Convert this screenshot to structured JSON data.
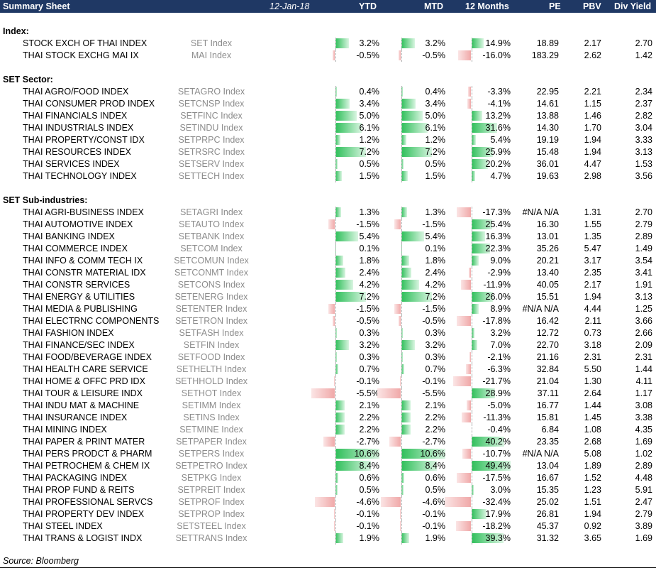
{
  "header": {
    "title": "Summary Sheet",
    "date": "12-Jan-18",
    "columns": [
      "YTD",
      "MTD",
      "12 Months",
      "PE",
      "PBV",
      "Div Yield"
    ]
  },
  "sections": [
    {
      "title": "Index:",
      "rows": [
        {
          "name": "STOCK EXCH OF THAI INDEX",
          "ticker": "SET Index",
          "ytd": 3.2,
          "mtd": 3.2,
          "m12": 14.9,
          "ytd_t": "3.2%",
          "mtd_t": "3.2%",
          "m12_t": "14.9%",
          "pe": "18.89",
          "pbv": "2.17",
          "dy": "2.70"
        },
        {
          "name": "THAI STOCK EXCHG MAI IX",
          "ticker": "MAI Index",
          "ytd": -0.5,
          "mtd": -0.5,
          "m12": -16.0,
          "ytd_t": "-0.5%",
          "mtd_t": "-0.5%",
          "m12_t": "-16.0%",
          "pe": "183.29",
          "pbv": "2.62",
          "dy": "1.42"
        }
      ]
    },
    {
      "title": "SET Sector:",
      "rows": [
        {
          "name": "THAI AGRO/FOOD INDEX",
          "ticker": "SETAGRO Index",
          "ytd": 0.4,
          "mtd": 0.4,
          "m12": -3.3,
          "ytd_t": "0.4%",
          "mtd_t": "0.4%",
          "m12_t": "-3.3%",
          "pe": "22.95",
          "pbv": "2.21",
          "dy": "2.34"
        },
        {
          "name": "THAI CONSUMER PROD INDEX",
          "ticker": "SETCNSP Index",
          "ytd": 3.4,
          "mtd": 3.4,
          "m12": -4.1,
          "ytd_t": "3.4%",
          "mtd_t": "3.4%",
          "m12_t": "-4.1%",
          "pe": "14.61",
          "pbv": "1.15",
          "dy": "2.37"
        },
        {
          "name": "THAI FINANCIALS INDEX",
          "ticker": "SETFINC Index",
          "ytd": 5.0,
          "mtd": 5.0,
          "m12": 13.2,
          "ytd_t": "5.0%",
          "mtd_t": "5.0%",
          "m12_t": "13.2%",
          "pe": "13.88",
          "pbv": "1.46",
          "dy": "2.82"
        },
        {
          "name": "THAI INDUSTRIALS INDEX",
          "ticker": "SETINDU Index",
          "ytd": 6.1,
          "mtd": 6.1,
          "m12": 31.6,
          "ytd_t": "6.1%",
          "mtd_t": "6.1%",
          "m12_t": "31.6%",
          "pe": "14.30",
          "pbv": "1.70",
          "dy": "3.04"
        },
        {
          "name": "THAI PROPERTY/CONST IDX",
          "ticker": "SETPRPC Index",
          "ytd": 1.2,
          "mtd": 1.2,
          "m12": 5.4,
          "ytd_t": "1.2%",
          "mtd_t": "1.2%",
          "m12_t": "5.4%",
          "pe": "19.19",
          "pbv": "1.94",
          "dy": "3.33"
        },
        {
          "name": "THAI RESOURCES INDEX",
          "ticker": "SETRSRC Index",
          "ytd": 7.2,
          "mtd": 7.2,
          "m12": 25.9,
          "ytd_t": "7.2%",
          "mtd_t": "7.2%",
          "m12_t": "25.9%",
          "pe": "15.48",
          "pbv": "1.94",
          "dy": "3.13"
        },
        {
          "name": "THAI SERVICES INDEX",
          "ticker": "SETSERV Index",
          "ytd": 0.5,
          "mtd": 0.5,
          "m12": 20.2,
          "ytd_t": "0.5%",
          "mtd_t": "0.5%",
          "m12_t": "20.2%",
          "pe": "36.01",
          "pbv": "4.47",
          "dy": "1.53"
        },
        {
          "name": "THAI TECHNOLOGY INDEX",
          "ticker": "SETTECH Index",
          "ytd": 1.5,
          "mtd": 1.5,
          "m12": 4.7,
          "ytd_t": "1.5%",
          "mtd_t": "1.5%",
          "m12_t": "4.7%",
          "pe": "19.63",
          "pbv": "2.98",
          "dy": "3.56"
        }
      ]
    },
    {
      "title": "SET Sub-industries:",
      "rows": [
        {
          "name": "THAI AGRI-BUSINESS INDEX",
          "ticker": "SETAGRI Index",
          "ytd": 1.3,
          "mtd": 1.3,
          "m12": -17.3,
          "ytd_t": "1.3%",
          "mtd_t": "1.3%",
          "m12_t": "-17.3%",
          "pe": "#N/A N/A",
          "pbv": "1.31",
          "dy": "2.70"
        },
        {
          "name": "THAI AUTOMOTIVE INDEX",
          "ticker": "SETAUTO Index",
          "ytd": -1.5,
          "mtd": -1.5,
          "m12": 25.4,
          "ytd_t": "-1.5%",
          "mtd_t": "-1.5%",
          "m12_t": "25.4%",
          "pe": "16.30",
          "pbv": "1.55",
          "dy": "2.79"
        },
        {
          "name": "THAI BANKING INDEX",
          "ticker": "SETBANK Index",
          "ytd": 5.4,
          "mtd": 5.4,
          "m12": 16.3,
          "ytd_t": "5.4%",
          "mtd_t": "5.4%",
          "m12_t": "16.3%",
          "pe": "13.01",
          "pbv": "1.35",
          "dy": "2.89"
        },
        {
          "name": "THAI COMMERCE INDEX",
          "ticker": "SETCOM Index",
          "ytd": 0.1,
          "mtd": 0.1,
          "m12": 22.3,
          "ytd_t": "0.1%",
          "mtd_t": "0.1%",
          "m12_t": "22.3%",
          "pe": "35.26",
          "pbv": "5.47",
          "dy": "1.49"
        },
        {
          "name": "THAI INFO & COMM TECH IX",
          "ticker": "SETCOMUN Index",
          "ytd": 1.8,
          "mtd": 1.8,
          "m12": 9.0,
          "ytd_t": "1.8%",
          "mtd_t": "1.8%",
          "m12_t": "9.0%",
          "pe": "20.21",
          "pbv": "3.17",
          "dy": "3.54"
        },
        {
          "name": "THAI CONSTR MATERIAL IDX",
          "ticker": "SETCONMT Index",
          "ytd": 2.4,
          "mtd": 2.4,
          "m12": -2.9,
          "ytd_t": "2.4%",
          "mtd_t": "2.4%",
          "m12_t": "-2.9%",
          "pe": "13.40",
          "pbv": "2.35",
          "dy": "3.41"
        },
        {
          "name": "THAI CONSTR SERVICES",
          "ticker": "SETCONS Index",
          "ytd": 4.2,
          "mtd": 4.2,
          "m12": -11.9,
          "ytd_t": "4.2%",
          "mtd_t": "4.2%",
          "m12_t": "-11.9%",
          "pe": "40.05",
          "pbv": "2.17",
          "dy": "1.91"
        },
        {
          "name": "THAI ENERGY & UTILITIES",
          "ticker": "SETENERG Index",
          "ytd": 7.2,
          "mtd": 7.2,
          "m12": 26.0,
          "ytd_t": "7.2%",
          "mtd_t": "7.2%",
          "m12_t": "26.0%",
          "pe": "15.51",
          "pbv": "1.94",
          "dy": "3.13"
        },
        {
          "name": "THAI MEDIA & PUBLISHING",
          "ticker": "SETENTER Index",
          "ytd": -1.5,
          "mtd": -1.5,
          "m12": 8.9,
          "ytd_t": "-1.5%",
          "mtd_t": "-1.5%",
          "m12_t": "8.9%",
          "pe": "#N/A N/A",
          "pbv": "4.44",
          "dy": "1.25"
        },
        {
          "name": "THAI ELECTRNC COMPONENTS",
          "ticker": "SETETRON Index",
          "ytd": -0.5,
          "mtd": -0.5,
          "m12": -17.8,
          "ytd_t": "-0.5%",
          "mtd_t": "-0.5%",
          "m12_t": "-17.8%",
          "pe": "16.42",
          "pbv": "2.11",
          "dy": "3.66"
        },
        {
          "name": "THAI FASHION INDEX",
          "ticker": "SETFASH Index",
          "ytd": 0.3,
          "mtd": 0.3,
          "m12": 3.2,
          "ytd_t": "0.3%",
          "mtd_t": "0.3%",
          "m12_t": "3.2%",
          "pe": "12.72",
          "pbv": "0.73",
          "dy": "2.66"
        },
        {
          "name": "THAI FINANCE/SEC INDEX",
          "ticker": "SETFIN Index",
          "ytd": 3.2,
          "mtd": 3.2,
          "m12": 7.0,
          "ytd_t": "3.2%",
          "mtd_t": "3.2%",
          "m12_t": "7.0%",
          "pe": "22.70",
          "pbv": "3.18",
          "dy": "2.09"
        },
        {
          "name": "THAI FOOD/BEVERAGE INDEX",
          "ticker": "SETFOOD Index",
          "ytd": 0.3,
          "mtd": 0.3,
          "m12": -2.1,
          "ytd_t": "0.3%",
          "mtd_t": "0.3%",
          "m12_t": "-2.1%",
          "pe": "21.16",
          "pbv": "2.31",
          "dy": "2.31"
        },
        {
          "name": "THAI HEALTH CARE SERVICE",
          "ticker": "SETHELTH Index",
          "ytd": 0.7,
          "mtd": 0.7,
          "m12": -6.3,
          "ytd_t": "0.7%",
          "mtd_t": "0.7%",
          "m12_t": "-6.3%",
          "pe": "32.84",
          "pbv": "5.50",
          "dy": "1.44"
        },
        {
          "name": "THAI HOME & OFFC PRD IDX",
          "ticker": "SETHHOLD Index",
          "ytd": -0.1,
          "mtd": -0.1,
          "m12": -21.7,
          "ytd_t": "-0.1%",
          "mtd_t": "-0.1%",
          "m12_t": "-21.7%",
          "pe": "21.04",
          "pbv": "1.30",
          "dy": "4.11"
        },
        {
          "name": "THAI TOUR & LEISURE INDX",
          "ticker": "SETHOT Index",
          "ytd": -5.5,
          "mtd": -5.5,
          "m12": 28.9,
          "ytd_t": "-5.5%",
          "mtd_t": "-5.5%",
          "m12_t": "28.9%",
          "pe": "37.11",
          "pbv": "2.64",
          "dy": "1.17"
        },
        {
          "name": "THAI INDU MAT & MACHINE",
          "ticker": "SETIMM Index",
          "ytd": 2.1,
          "mtd": 2.1,
          "m12": -5.0,
          "ytd_t": "2.1%",
          "mtd_t": "2.1%",
          "m12_t": "-5.0%",
          "pe": "16.77",
          "pbv": "1.44",
          "dy": "3.08"
        },
        {
          "name": "THAI INSURANCE INDEX",
          "ticker": "SETINS Index",
          "ytd": 2.2,
          "mtd": 2.2,
          "m12": -11.3,
          "ytd_t": "2.2%",
          "mtd_t": "2.2%",
          "m12_t": "-11.3%",
          "pe": "15.81",
          "pbv": "1.45",
          "dy": "3.38"
        },
        {
          "name": "THAI MINING INDEX",
          "ticker": "SETMINE Index",
          "ytd": 2.2,
          "mtd": 2.2,
          "m12": -0.4,
          "ytd_t": "2.2%",
          "mtd_t": "2.2%",
          "m12_t": "-0.4%",
          "pe": "6.84",
          "pbv": "1.08",
          "dy": "4.35"
        },
        {
          "name": "THAI PAPER & PRINT MATER",
          "ticker": "SETPAPER Index",
          "ytd": -2.7,
          "mtd": -2.7,
          "m12": 40.2,
          "ytd_t": "-2.7%",
          "mtd_t": "-2.7%",
          "m12_t": "40.2%",
          "pe": "23.35",
          "pbv": "2.68",
          "dy": "1.69"
        },
        {
          "name": "THAI PERS PRODCT & PHARM",
          "ticker": "SETPERS Index",
          "ytd": 10.6,
          "mtd": 10.6,
          "m12": -10.7,
          "ytd_t": "10.6%",
          "mtd_t": "10.6%",
          "m12_t": "-10.7%",
          "pe": "#N/A N/A",
          "pbv": "5.08",
          "dy": "1.02"
        },
        {
          "name": "THAI PETROCHEM & CHEM IX",
          "ticker": "SETPETRO Index",
          "ytd": 8.4,
          "mtd": 8.4,
          "m12": 49.4,
          "ytd_t": "8.4%",
          "mtd_t": "8.4%",
          "m12_t": "49.4%",
          "pe": "13.04",
          "pbv": "1.89",
          "dy": "2.89"
        },
        {
          "name": "THAI PACKAGING INDEX",
          "ticker": "SETPKG Index",
          "ytd": 0.6,
          "mtd": 0.6,
          "m12": -17.5,
          "ytd_t": "0.6%",
          "mtd_t": "0.6%",
          "m12_t": "-17.5%",
          "pe": "16.67",
          "pbv": "1.52",
          "dy": "4.48"
        },
        {
          "name": "THAI PROP FUND & REITS",
          "ticker": "SETPREIT Index",
          "ytd": 0.5,
          "mtd": 0.5,
          "m12": 3.0,
          "ytd_t": "0.5%",
          "mtd_t": "0.5%",
          "m12_t": "3.0%",
          "pe": "15.35",
          "pbv": "1.23",
          "dy": "5.91"
        },
        {
          "name": "THAI PROFESSIONAL SERVCS",
          "ticker": "SETPROF Index",
          "ytd": -4.6,
          "mtd": -4.6,
          "m12": -32.4,
          "ytd_t": "-4.6%",
          "mtd_t": "-4.6%",
          "m12_t": "-32.4%",
          "pe": "25.02",
          "pbv": "1.51",
          "dy": "2.47"
        },
        {
          "name": "THAI PROPERTY DEV INDEX",
          "ticker": "SETPROP Index",
          "ytd": -0.1,
          "mtd": -0.1,
          "m12": 17.9,
          "ytd_t": "-0.1%",
          "mtd_t": "-0.1%",
          "m12_t": "17.9%",
          "pe": "26.81",
          "pbv": "1.94",
          "dy": "2.79"
        },
        {
          "name": "THAI STEEL INDEX",
          "ticker": "SETSTEEL Index",
          "ytd": -0.1,
          "mtd": -0.1,
          "m12": -18.2,
          "ytd_t": "-0.1%",
          "mtd_t": "-0.1%",
          "m12_t": "-18.2%",
          "pe": "45.37",
          "pbv": "0.92",
          "dy": "3.89"
        },
        {
          "name": "THAI TRANS & LOGIST INDX",
          "ticker": "SETTRANS Index",
          "ytd": 1.9,
          "mtd": 1.9,
          "m12": 39.3,
          "ytd_t": "1.9%",
          "mtd_t": "1.9%",
          "m12_t": "39.3%",
          "pe": "31.32",
          "pbv": "3.65",
          "dy": "1.69"
        }
      ]
    }
  ],
  "source": "Source: Bloomberg",
  "colors": {
    "header_bg": "#1f3864",
    "positive_bar": "#2fbf5a",
    "negative_bar": "#f0a8a8",
    "ticker_text": "#8c8c8c"
  }
}
